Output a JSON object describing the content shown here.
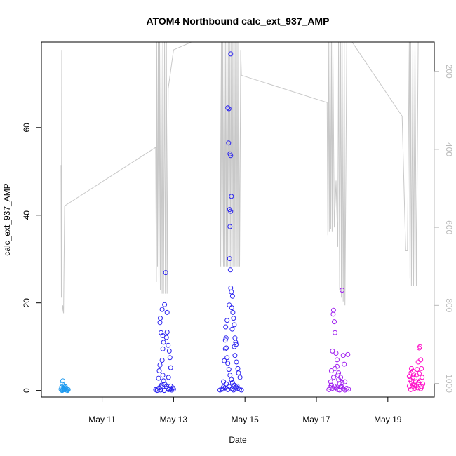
{
  "chart_data": {
    "type": "scatter",
    "title": "ATOM4 Northbound calc_ext_937_AMP",
    "xlabel": "Date",
    "ylabel": "calc_ext_937_AMP",
    "x_ticks": [
      {
        "day": 11,
        "label": "May 11"
      },
      {
        "day": 13,
        "label": "May 13"
      },
      {
        "day": 15,
        "label": "May 15"
      },
      {
        "day": 17,
        "label": "May 17"
      },
      {
        "day": 19,
        "label": "May 19"
      }
    ],
    "xlim": [
      9.3,
      20.3
    ],
    "ylim": [
      -1.5,
      79.5
    ],
    "y_ticks": [
      0,
      20,
      40,
      60
    ],
    "right_axis": {
      "ticks": [
        200,
        400,
        600,
        800,
        1000
      ],
      "range_top_to_bottom": [
        125,
        1035
      ],
      "color": "#bbbbbb"
    },
    "point_colors": [
      "#1f9bf0",
      "#2a22f0",
      "#2a22f0",
      "#a020f0",
      "#ff10c8"
    ],
    "line_color": "#c8c8c8",
    "clusters": [
      {
        "center": 9.95,
        "spread": 0.12,
        "points": [
          [
            9.85,
            0.3
          ],
          [
            9.87,
            0.8
          ],
          [
            9.88,
            1.5
          ],
          [
            9.9,
            2.2
          ],
          [
            9.9,
            0.1
          ],
          [
            9.92,
            0.5
          ],
          [
            9.93,
            1.0
          ],
          [
            9.95,
            0.2
          ],
          [
            9.96,
            0.6
          ],
          [
            9.98,
            0.3
          ],
          [
            10.0,
            0.1
          ],
          [
            10.02,
            0.4
          ],
          [
            10.05,
            0.2
          ],
          [
            9.88,
            0.0
          ],
          [
            9.91,
            0.2
          ],
          [
            9.97,
            0.9
          ],
          [
            10.03,
            0.0
          ],
          [
            9.94,
            0.3
          ]
        ]
      },
      {
        "center": 12.8,
        "spread": 0.35,
        "points": [
          [
            12.5,
            0.2
          ],
          [
            12.55,
            0.3
          ],
          [
            12.6,
            4.5
          ],
          [
            12.62,
            15.5
          ],
          [
            12.63,
            16.5
          ],
          [
            12.65,
            13.2
          ],
          [
            12.68,
            18.5
          ],
          [
            12.7,
            12.5
          ],
          [
            12.72,
            11.0
          ],
          [
            12.75,
            19.6
          ],
          [
            12.78,
            26.9
          ],
          [
            12.8,
            12.1
          ],
          [
            12.82,
            17.8
          ],
          [
            12.85,
            10.3
          ],
          [
            12.88,
            9.0
          ],
          [
            12.9,
            7.5
          ],
          [
            12.92,
            5.2
          ],
          [
            12.7,
            3.5
          ],
          [
            12.72,
            2.2
          ],
          [
            12.76,
            1.4
          ],
          [
            12.8,
            0.9
          ],
          [
            12.84,
            0.5
          ],
          [
            12.86,
            0.2
          ],
          [
            12.9,
            0.4
          ],
          [
            12.95,
            0.1
          ],
          [
            13.0,
            0.3
          ],
          [
            12.6,
            0.6
          ],
          [
            12.65,
            0.8
          ],
          [
            12.66,
            1.2
          ],
          [
            12.74,
            0.0
          ],
          [
            12.58,
            2.8
          ],
          [
            12.62,
            5.8
          ],
          [
            12.68,
            6.9
          ],
          [
            12.7,
            9.5
          ],
          [
            12.82,
            13.3
          ],
          [
            12.86,
            3.0
          ],
          [
            12.92,
            1.0
          ],
          [
            12.98,
            0.6
          ],
          [
            12.54,
            0.0
          ],
          [
            12.64,
            0.1
          ]
        ]
      },
      {
        "center": 14.6,
        "spread": 0.35,
        "points": [
          [
            14.3,
            0.1
          ],
          [
            14.35,
            0.4
          ],
          [
            14.4,
            2.0
          ],
          [
            14.42,
            6.8
          ],
          [
            14.45,
            9.5
          ],
          [
            14.47,
            12.0
          ],
          [
            14.5,
            16.0
          ],
          [
            14.52,
            64.5
          ],
          [
            14.55,
            64.3
          ],
          [
            14.54,
            56.5
          ],
          [
            14.58,
            54.0
          ],
          [
            14.6,
            53.6
          ],
          [
            14.62,
            44.3
          ],
          [
            14.57,
            41.3
          ],
          [
            14.6,
            40.9
          ],
          [
            14.58,
            37.4
          ],
          [
            14.57,
            30.1
          ],
          [
            14.59,
            27.5
          ],
          [
            14.6,
            23.4
          ],
          [
            14.62,
            22.5
          ],
          [
            14.65,
            21.5
          ],
          [
            14.63,
            18.9
          ],
          [
            14.66,
            17.8
          ],
          [
            14.68,
            16.5
          ],
          [
            14.7,
            15.0
          ],
          [
            14.72,
            12.0
          ],
          [
            14.75,
            10.5
          ],
          [
            14.72,
            8.0
          ],
          [
            14.76,
            6.5
          ],
          [
            14.8,
            5.0
          ],
          [
            14.82,
            4.0
          ],
          [
            14.86,
            3.0
          ],
          [
            14.6,
            76.8
          ],
          [
            14.45,
            11.5
          ],
          [
            14.48,
            9.7
          ],
          [
            14.5,
            7.5
          ],
          [
            14.52,
            6.2
          ],
          [
            14.55,
            4.8
          ],
          [
            14.58,
            3.5
          ],
          [
            14.62,
            2.5
          ],
          [
            14.65,
            1.8
          ],
          [
            14.7,
            1.2
          ],
          [
            14.75,
            0.8
          ],
          [
            14.8,
            0.5
          ],
          [
            14.85,
            0.3
          ],
          [
            14.9,
            0.1
          ],
          [
            14.4,
            0.8
          ],
          [
            14.44,
            0.6
          ],
          [
            14.48,
            1.5
          ],
          [
            14.52,
            0.2
          ],
          [
            14.56,
            0.9
          ],
          [
            14.64,
            0.4
          ],
          [
            14.68,
            0.1
          ],
          [
            14.72,
            0.6
          ],
          [
            14.78,
            1.0
          ],
          [
            14.38,
            0.3
          ],
          [
            14.46,
            14.5
          ],
          [
            14.56,
            19.5
          ],
          [
            14.64,
            14.0
          ],
          [
            14.7,
            10.0
          ],
          [
            14.74,
            11.0
          ]
        ]
      },
      {
        "center": 17.6,
        "spread": 0.3,
        "points": [
          [
            17.35,
            0.2
          ],
          [
            17.4,
            2.0
          ],
          [
            17.42,
            4.5
          ],
          [
            17.45,
            9.0
          ],
          [
            17.47,
            17.4
          ],
          [
            17.48,
            18.3
          ],
          [
            17.5,
            15.7
          ],
          [
            17.52,
            13.2
          ],
          [
            17.55,
            8.5
          ],
          [
            17.58,
            5.5
          ],
          [
            17.6,
            3.5
          ],
          [
            17.62,
            2.5
          ],
          [
            17.65,
            1.5
          ],
          [
            17.68,
            0.8
          ],
          [
            17.72,
            22.9
          ],
          [
            17.75,
            8.0
          ],
          [
            17.78,
            6.0
          ],
          [
            17.8,
            2.0
          ],
          [
            17.85,
            0.5
          ],
          [
            17.88,
            8.2
          ],
          [
            17.9,
            0.3
          ],
          [
            17.45,
            0.5
          ],
          [
            17.5,
            1.0
          ],
          [
            17.55,
            0.6
          ],
          [
            17.6,
            0.2
          ],
          [
            17.65,
            0.1
          ],
          [
            17.7,
            0.9
          ],
          [
            17.75,
            0.4
          ],
          [
            17.8,
            0.1
          ],
          [
            17.42,
            1.2
          ],
          [
            17.48,
            3.0
          ],
          [
            17.52,
            5.0
          ],
          [
            17.58,
            7.0
          ],
          [
            17.62,
            4.0
          ],
          [
            17.68,
            3.0
          ],
          [
            17.72,
            1.8
          ],
          [
            17.38,
            0.7
          ]
        ]
      },
      {
        "center": 19.8,
        "spread": 0.25,
        "points": [
          [
            19.6,
            1.0
          ],
          [
            19.62,
            2.5
          ],
          [
            19.65,
            4.0
          ],
          [
            19.66,
            5.0
          ],
          [
            19.7,
            3.0
          ],
          [
            19.72,
            1.5
          ],
          [
            19.75,
            0.5
          ],
          [
            19.78,
            2.0
          ],
          [
            19.8,
            3.5
          ],
          [
            19.82,
            4.8
          ],
          [
            19.85,
            6.5
          ],
          [
            19.88,
            9.7
          ],
          [
            19.9,
            10.0
          ],
          [
            19.92,
            7.0
          ],
          [
            19.94,
            5.0
          ],
          [
            19.96,
            3.0
          ],
          [
            19.98,
            1.5
          ],
          [
            19.64,
            0.2
          ],
          [
            19.68,
            0.8
          ],
          [
            19.74,
            1.2
          ],
          [
            19.76,
            2.8
          ],
          [
            19.84,
            0.6
          ],
          [
            19.86,
            1.8
          ],
          [
            19.9,
            2.2
          ],
          [
            19.92,
            0.4
          ],
          [
            19.6,
            3.2
          ],
          [
            19.7,
            4.4
          ],
          [
            19.8,
            1.1
          ],
          [
            19.88,
            3.9
          ],
          [
            19.95,
            0.9
          ],
          [
            19.66,
            2.0
          ],
          [
            19.72,
            3.6
          ]
        ]
      }
    ],
    "depth_line": [
      [
        9.85,
        440
      ],
      [
        9.86,
        780
      ],
      [
        9.87,
        145
      ],
      [
        9.88,
        820
      ],
      [
        9.9,
        800
      ],
      [
        9.92,
        820
      ],
      [
        9.95,
        545
      ],
      [
        12.5,
        395
      ],
      [
        12.52,
        740
      ],
      [
        12.53,
        125
      ],
      [
        12.55,
        700
      ],
      [
        12.57,
        125
      ],
      [
        12.59,
        750
      ],
      [
        12.61,
        125
      ],
      [
        12.63,
        760
      ],
      [
        12.65,
        125
      ],
      [
        12.68,
        770
      ],
      [
        12.7,
        125
      ],
      [
        12.72,
        770
      ],
      [
        12.75,
        125
      ],
      [
        12.77,
        770
      ],
      [
        12.8,
        125
      ],
      [
        12.82,
        770
      ],
      [
        12.85,
        245
      ],
      [
        13.0,
        145
      ],
      [
        13.5,
        125
      ],
      [
        14.3,
        125
      ],
      [
        14.32,
        700
      ],
      [
        14.34,
        125
      ],
      [
        14.36,
        690
      ],
      [
        14.38,
        125
      ],
      [
        14.4,
        700
      ],
      [
        14.42,
        125
      ],
      [
        14.44,
        700
      ],
      [
        14.46,
        125
      ],
      [
        14.48,
        700
      ],
      [
        14.5,
        125
      ],
      [
        14.52,
        700
      ],
      [
        14.54,
        125
      ],
      [
        14.56,
        700
      ],
      [
        14.58,
        125
      ],
      [
        14.6,
        700
      ],
      [
        14.62,
        125
      ],
      [
        14.64,
        700
      ],
      [
        14.66,
        125
      ],
      [
        14.68,
        700
      ],
      [
        14.7,
        125
      ],
      [
        14.72,
        700
      ],
      [
        14.74,
        125
      ],
      [
        14.76,
        700
      ],
      [
        14.78,
        125
      ],
      [
        14.8,
        700
      ],
      [
        14.82,
        125
      ],
      [
        14.85,
        700
      ],
      [
        14.88,
        145
      ],
      [
        14.9,
        210
      ],
      [
        17.3,
        280
      ],
      [
        17.32,
        620
      ],
      [
        17.34,
        125
      ],
      [
        17.36,
        610
      ],
      [
        17.38,
        125
      ],
      [
        17.4,
        605
      ],
      [
        17.42,
        125
      ],
      [
        17.44,
        610
      ],
      [
        17.46,
        125
      ],
      [
        17.5,
        600
      ],
      [
        17.55,
        480
      ],
      [
        17.6,
        650
      ],
      [
        17.62,
        125
      ],
      [
        17.65,
        760
      ],
      [
        17.68,
        125
      ],
      [
        17.7,
        780
      ],
      [
        17.72,
        125
      ],
      [
        17.75,
        790
      ],
      [
        17.78,
        125
      ],
      [
        17.8,
        800
      ],
      [
        17.85,
        125
      ],
      [
        18.0,
        125
      ],
      [
        19.4,
        315
      ],
      [
        19.5,
        660
      ],
      [
        19.55,
        660
      ],
      [
        19.6,
        125
      ],
      [
        19.62,
        730
      ],
      [
        19.64,
        125
      ],
      [
        19.66,
        750
      ],
      [
        19.7,
        125
      ],
      [
        19.72,
        750
      ],
      [
        19.76,
        125
      ],
      [
        19.8,
        750
      ],
      [
        19.85,
        125
      ]
    ]
  }
}
